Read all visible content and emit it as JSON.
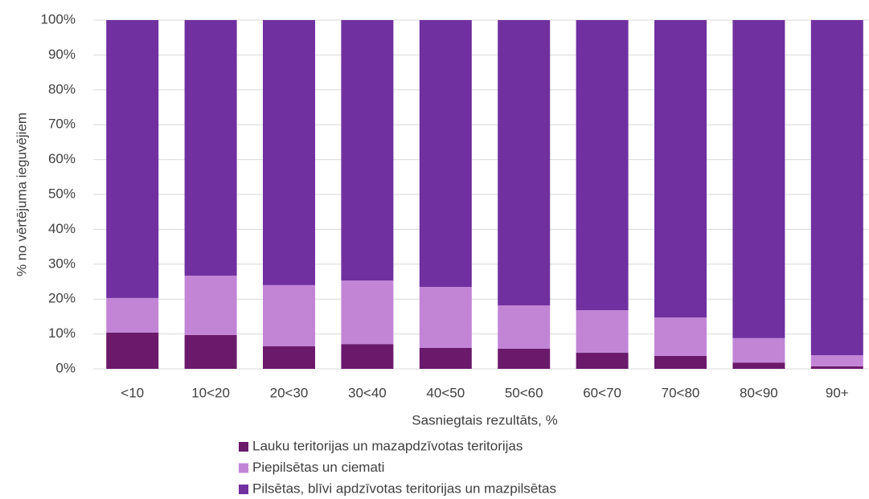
{
  "chart_data": {
    "type": "stacked_bar",
    "x_label": "Sasniegtais rezultāts, %",
    "y_label": "% no vērtējuma ieguvējiem",
    "categories": [
      "<10",
      "10<20",
      "20<30",
      "30<40",
      "40<50",
      "50<60",
      "60<70",
      "70<80",
      "80<90",
      "90+"
    ],
    "series": [
      {
        "name": "Lauku teritorijas un mazapdzīvotas teritorijas",
        "color": "#6b1a6b",
        "values": [
          10.4,
          9.7,
          6.5,
          7.1,
          6.0,
          5.8,
          4.6,
          3.7,
          1.8,
          0.7
        ]
      },
      {
        "name": "Piepilsētas un ciemati",
        "color": "#c285d6",
        "values": [
          9.9,
          17.0,
          17.5,
          18.2,
          17.5,
          12.4,
          12.2,
          11.0,
          7.0,
          3.2
        ]
      },
      {
        "name": "Pilsētas, blīvi apdzīvotas teritorijas un mazpilsētas",
        "color": "#7030a0",
        "values": [
          79.7,
          73.3,
          76.0,
          74.7,
          76.5,
          81.8,
          83.2,
          85.3,
          91.2,
          96.1
        ]
      }
    ],
    "ylim": [
      0,
      100
    ],
    "yticks": [
      {
        "value": 0,
        "label": "0%"
      },
      {
        "value": 10,
        "label": "10%"
      },
      {
        "value": 20,
        "label": "20%"
      },
      {
        "value": 30,
        "label": "30%"
      },
      {
        "value": 40,
        "label": "40%"
      },
      {
        "value": 50,
        "label": "50%"
      },
      {
        "value": 60,
        "label": "60%"
      },
      {
        "value": 70,
        "label": "70%"
      },
      {
        "value": 80,
        "label": "80%"
      },
      {
        "value": 90,
        "label": "90%"
      },
      {
        "value": 100,
        "label": "100%"
      }
    ],
    "grid": true,
    "legend": "bottom"
  }
}
